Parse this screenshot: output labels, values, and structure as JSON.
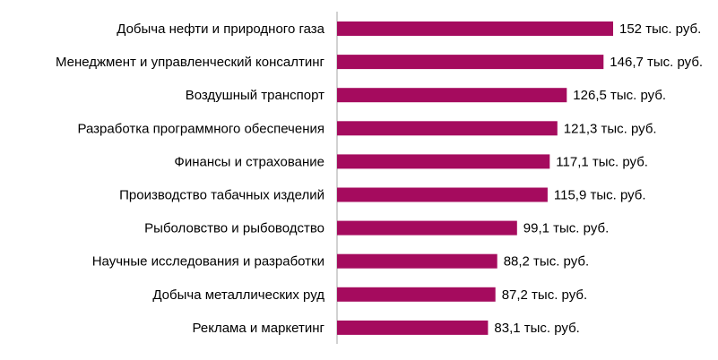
{
  "chart_data": {
    "type": "bar",
    "orientation": "horizontal",
    "categories": [
      "Добыча нефти и природного газа",
      "Менеджмент и управленческий консалтинг",
      "Воздушный транспорт",
      "Разработка программного обеспечения",
      "Финансы и страхование",
      "Производство табачных изделий",
      "Рыболовство и рыбоводство",
      "Научные исследования и разработки",
      "Добыча металлических руд",
      "Реклама и маркетинг"
    ],
    "values": [
      152,
      146.7,
      126.5,
      121.3,
      117.1,
      115.9,
      99.1,
      88.2,
      87.2,
      83.1
    ],
    "value_labels": [
      "152 тыс. руб.",
      "146,7 тыс. руб.",
      "126,5 тыс. руб.",
      "121,3 тыс. руб.",
      "117,1 тыс. руб.",
      "115,9 тыс. руб.",
      "99,1 тыс. руб.",
      "88,2 тыс. руб.",
      "87,2 тыс. руб.",
      "83,1 тыс. руб."
    ],
    "xlim": [
      0,
      152
    ],
    "bar_color": "#A50B5E",
    "axis_color": "#A6A6A6",
    "grid": false,
    "legend": "none"
  }
}
